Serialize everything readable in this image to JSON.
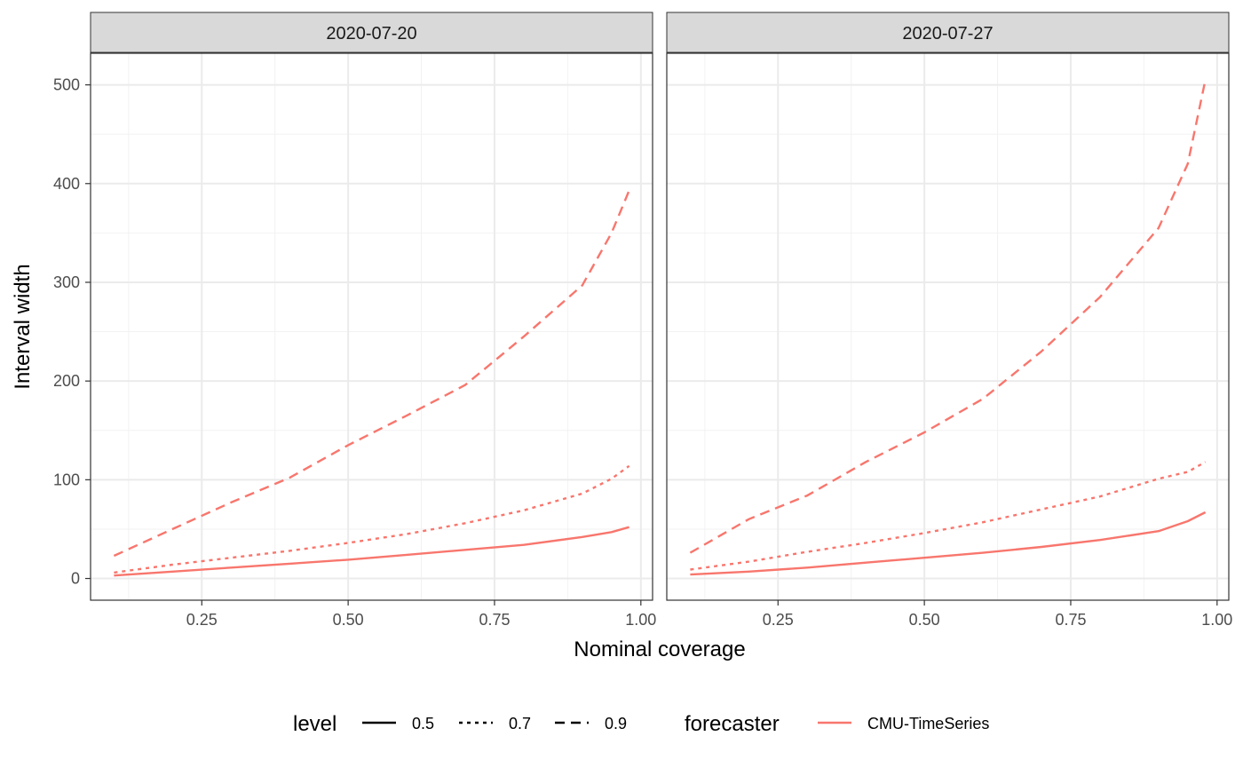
{
  "chart_data": {
    "type": "line",
    "xlabel": "Nominal coverage",
    "ylabel": "Interval width",
    "xlim": [
      0.06,
      1.02
    ],
    "ylim": [
      -22,
      532
    ],
    "x_ticks": [
      0.25,
      0.5,
      0.75,
      1.0
    ],
    "x_tick_labels": [
      "0.25",
      "0.50",
      "0.75",
      "1.00"
    ],
    "y_ticks": [
      0,
      100,
      200,
      300,
      400,
      500
    ],
    "y_tick_labels": [
      "0",
      "100",
      "200",
      "300",
      "400",
      "500"
    ],
    "grid": true,
    "series_color": "#f8766d",
    "legend_position": "bottom",
    "legend": {
      "level_title": "level",
      "levels": [
        {
          "label": "0.5",
          "dash": "solid"
        },
        {
          "label": "0.7",
          "dash": "dotted"
        },
        {
          "label": "0.9",
          "dash": "dashed"
        }
      ],
      "forecaster_title": "forecaster",
      "forecasters": [
        {
          "label": "CMU-TimeSeries",
          "color": "#f8766d"
        }
      ]
    },
    "panels": [
      {
        "title": "2020-07-20",
        "series": [
          {
            "level": "0.5",
            "x": [
              0.1,
              0.2,
              0.3,
              0.4,
              0.5,
              0.6,
              0.7,
              0.8,
              0.9,
              0.95,
              0.98
            ],
            "y": [
              3,
              7,
              11,
              15,
              19,
              24,
              29,
              34,
              42,
              47,
              52
            ]
          },
          {
            "level": "0.7",
            "x": [
              0.1,
              0.2,
              0.3,
              0.4,
              0.5,
              0.6,
              0.7,
              0.8,
              0.9,
              0.95,
              0.98
            ],
            "y": [
              6,
              14,
              21,
              28,
              36,
              45,
              56,
              69,
              86,
              101,
              114
            ]
          },
          {
            "level": "0.9",
            "x": [
              0.1,
              0.2,
              0.3,
              0.4,
              0.5,
              0.6,
              0.7,
              0.8,
              0.9,
              0.95,
              0.98
            ],
            "y": [
              23,
              50,
              77,
              102,
              135,
              165,
              196,
              245,
              297,
              350,
              393
            ]
          }
        ]
      },
      {
        "title": "2020-07-27",
        "series": [
          {
            "level": "0.5",
            "x": [
              0.1,
              0.2,
              0.3,
              0.4,
              0.5,
              0.6,
              0.7,
              0.8,
              0.9,
              0.95,
              0.98
            ],
            "y": [
              4,
              7,
              11,
              16,
              21,
              26,
              32,
              39,
              48,
              58,
              67
            ]
          },
          {
            "level": "0.7",
            "x": [
              0.1,
              0.2,
              0.3,
              0.4,
              0.5,
              0.6,
              0.7,
              0.8,
              0.9,
              0.95,
              0.98
            ],
            "y": [
              9,
              17,
              27,
              36,
              46,
              57,
              70,
              83,
              101,
              108,
              118
            ]
          },
          {
            "level": "0.9",
            "x": [
              0.1,
              0.2,
              0.3,
              0.4,
              0.5,
              0.6,
              0.7,
              0.8,
              0.9,
              0.95,
              0.98
            ],
            "y": [
              26,
              60,
              84,
              118,
              148,
              182,
              230,
              285,
              355,
              420,
              505
            ]
          }
        ]
      }
    ]
  }
}
